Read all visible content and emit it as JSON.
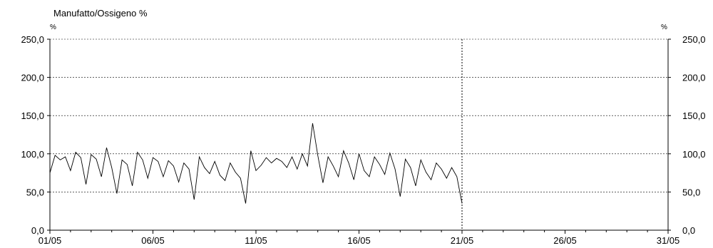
{
  "chart_data": {
    "type": "line",
    "title": "Manufatto/Ossigeno %",
    "y_unit_left": "%",
    "y_unit_right": "%",
    "xlabel": "",
    "ylabel": "",
    "x_ticks": [
      "01/05",
      "06/05",
      "11/05",
      "16/05",
      "21/05",
      "26/05",
      "31/05"
    ],
    "y_ticks": [
      "0,0",
      "50,0",
      "100,0",
      "150,0",
      "200,0",
      "250,0"
    ],
    "xlim_days": [
      1,
      31
    ],
    "ylim": [
      0,
      250
    ],
    "grid": true,
    "legend": "none",
    "series_color": "#000000",
    "vertical_marker_day": 21,
    "series": [
      {
        "x_day": [
          1.0,
          1.25,
          1.5,
          1.75,
          2.0,
          2.25,
          2.5,
          2.75,
          3.0,
          3.25,
          3.5,
          3.75,
          4.0,
          4.25,
          4.5,
          4.75,
          5.0,
          5.25,
          5.5,
          5.75,
          6.0,
          6.25,
          6.5,
          6.75,
          7.0,
          7.25,
          7.5,
          7.75,
          8.0,
          8.25,
          8.5,
          8.75,
          9.0,
          9.25,
          9.5,
          9.75,
          10.0,
          10.25,
          10.5,
          10.75,
          11.0,
          11.25,
          11.5,
          11.75,
          12.0,
          12.25,
          12.5,
          12.75,
          13.0,
          13.25,
          13.5,
          13.75,
          14.0,
          14.25,
          14.5,
          14.75,
          15.0,
          15.25,
          15.5,
          15.75,
          16.0,
          16.25,
          16.5,
          16.75,
          17.0,
          17.25,
          17.5,
          17.75,
          18.0,
          18.25,
          18.5,
          18.75,
          19.0,
          19.25,
          19.5,
          19.75,
          20.0,
          20.25,
          20.5,
          20.75,
          21.0
        ],
        "values": [
          75,
          98,
          92,
          96,
          78,
          102,
          95,
          60,
          99,
          93,
          70,
          108,
          82,
          48,
          92,
          86,
          58,
          102,
          92,
          68,
          95,
          90,
          70,
          91,
          84,
          63,
          88,
          80,
          40,
          96,
          82,
          74,
          90,
          72,
          65,
          88,
          76,
          68,
          35,
          104,
          78,
          85,
          95,
          88,
          94,
          90,
          82,
          96,
          80,
          100,
          84,
          140,
          98,
          62,
          96,
          84,
          70,
          104,
          88,
          66,
          100,
          78,
          70,
          96,
          86,
          73,
          101,
          80,
          44,
          93,
          82,
          58,
          92,
          76,
          66,
          88,
          80,
          68,
          82,
          70,
          35
        ]
      }
    ]
  }
}
